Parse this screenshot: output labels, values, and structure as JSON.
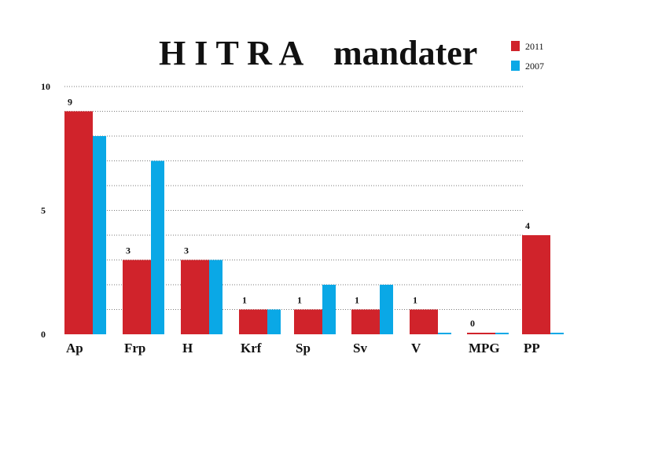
{
  "chart_data": {
    "type": "bar",
    "title_main": "H I T R A",
    "title_sub": "mandater",
    "categories": [
      "Ap",
      "Frp",
      "H",
      "Krf",
      "Sp",
      "Sv",
      "V",
      "MPG",
      "PP"
    ],
    "series": [
      {
        "name": "2011",
        "values": [
          9,
          3,
          3,
          1,
          1,
          1,
          1,
          0,
          4
        ],
        "data_labels": [
          "9",
          "3",
          "3",
          "1",
          "1",
          "1",
          "1",
          "0",
          "4"
        ]
      },
      {
        "name": "2007",
        "values": [
          8,
          7,
          3,
          1,
          2,
          2,
          0,
          0,
          0
        ]
      }
    ],
    "y_ticks": [
      "0",
      "5",
      "10"
    ],
    "ylim": [
      0,
      10
    ],
    "grid": true,
    "legend_position": "top-right",
    "colors": {
      "s2011": "#d0232b",
      "s2007": "#0aa8e6",
      "grid": "#7a7a7a"
    }
  }
}
